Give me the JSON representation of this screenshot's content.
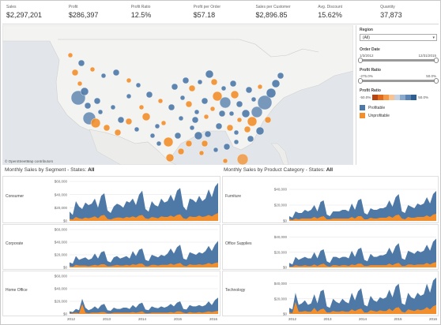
{
  "kpis": [
    {
      "label": "Sales",
      "value": "$2,297,201"
    },
    {
      "label": "Profit",
      "value": "$286,397"
    },
    {
      "label": "Profit Ratio",
      "value": "12.5%"
    },
    {
      "label": "Profit per Order",
      "value": "$57.18"
    },
    {
      "label": "Sales per Customer",
      "value": "$2,896.85"
    },
    {
      "label": "Avg. Discount",
      "value": "15.62%"
    },
    {
      "label": "Quantity",
      "value": "37,873"
    }
  ],
  "map": {
    "credit": "© OpenStreetMap contributors"
  },
  "filters": {
    "region_title": "Region",
    "region_value": "(All)",
    "order_date_title": "Order Date",
    "order_date_start": "1/3/2012",
    "order_date_end": "12/31/2015",
    "profit_ratio_title": "Profit Ratio",
    "profit_ratio_min": "-275.0%",
    "profit_ratio_max": "50.0%",
    "ratio_scale_title": "Profit Ratio",
    "ratio_scale_min": "-50.0%",
    "ratio_scale_max": "50.0%",
    "legend": [
      {
        "label": "Profitable",
        "color": "#4e79a7"
      },
      {
        "label": "Unprofitable",
        "color": "#f28e2b"
      }
    ]
  },
  "segment_section": {
    "title": "Monthly Sales by Segment - States:",
    "state": "All"
  },
  "category_section": {
    "title": "Monthly Sales by Product Category - States:",
    "state": "All"
  },
  "colors": {
    "profitable": "#4e79a7",
    "unprofitable": "#f28e2b"
  },
  "x_ticks": [
    "2012",
    "2013",
    "2014",
    "2015",
    "2016"
  ],
  "segment_ticks": [
    "$60,000",
    "$40,000",
    "$20,000",
    "$0"
  ],
  "category_ticks": [
    "$40,000",
    "$20,000",
    "$0"
  ],
  "chart_data": [
    {
      "type": "area",
      "name": "Consumer",
      "ylim": [
        0,
        60000
      ],
      "series": [
        {
          "name": "Profitable",
          "values": [
            14000,
            9000,
            30000,
            22000,
            18000,
            28000,
            24000,
            26000,
            34000,
            20000,
            38000,
            42000,
            16000,
            12000,
            22000,
            26000,
            24000,
            20000,
            30000,
            28000,
            34000,
            24000,
            40000,
            46000,
            18000,
            14000,
            30000,
            24000,
            22000,
            34000,
            28000,
            30000,
            40000,
            30000,
            46000,
            50000,
            22000,
            16000,
            34000,
            32000,
            28000,
            38000,
            30000,
            34000,
            48000,
            36000,
            52000,
            58000
          ]
        },
        {
          "name": "Unprofitable",
          "values": [
            3000,
            2000,
            6000,
            4000,
            3000,
            5000,
            4000,
            5000,
            7000,
            4000,
            8000,
            9000,
            3000,
            2000,
            4000,
            5000,
            5000,
            4000,
            6000,
            5000,
            7000,
            5000,
            8000,
            9000,
            4000,
            3000,
            6000,
            5000,
            4000,
            7000,
            6000,
            6000,
            8000,
            6000,
            9000,
            10000,
            4000,
            3000,
            7000,
            6000,
            6000,
            8000,
            6000,
            7000,
            9000,
            7000,
            10000,
            12000
          ]
        }
      ]
    },
    {
      "type": "area",
      "name": "Corporate",
      "ylim": [
        0,
        60000
      ],
      "series": [
        {
          "name": "Profitable",
          "values": [
            8000,
            6000,
            18000,
            12000,
            14000,
            16000,
            12000,
            14000,
            22000,
            14000,
            24000,
            26000,
            10000,
            8000,
            16000,
            18000,
            14000,
            16000,
            18000,
            14000,
            26000,
            18000,
            28000,
            30000,
            12000,
            10000,
            20000,
            18000,
            16000,
            20000,
            18000,
            22000,
            30000,
            22000,
            32000,
            36000,
            14000,
            12000,
            24000,
            22000,
            20000,
            24000,
            22000,
            26000,
            34000,
            26000,
            36000,
            42000
          ]
        },
        {
          "name": "Unprofitable",
          "values": [
            2000,
            1000,
            4000,
            3000,
            3000,
            3000,
            2000,
            3000,
            4000,
            3000,
            5000,
            5000,
            2000,
            2000,
            3000,
            4000,
            3000,
            3000,
            4000,
            3000,
            5000,
            4000,
            6000,
            6000,
            2000,
            2000,
            4000,
            4000,
            3000,
            4000,
            4000,
            4000,
            6000,
            4000,
            6000,
            7000,
            3000,
            2000,
            5000,
            4000,
            4000,
            5000,
            4000,
            5000,
            7000,
            5000,
            7000,
            8000
          ]
        }
      ]
    },
    {
      "type": "area",
      "name": "Home Office",
      "ylim": [
        0,
        60000
      ],
      "series": [
        {
          "name": "Profitable",
          "values": [
            4000,
            3000,
            8000,
            6000,
            24000,
            10000,
            6000,
            8000,
            12000,
            8000,
            14000,
            16000,
            6000,
            5000,
            10000,
            8000,
            8000,
            10000,
            10000,
            8000,
            14000,
            10000,
            16000,
            18000,
            7000,
            6000,
            12000,
            10000,
            9000,
            12000,
            10000,
            12000,
            16000,
            12000,
            18000,
            20000,
            8000,
            7000,
            14000,
            12000,
            12000,
            14000,
            12000,
            14000,
            20000,
            14000,
            22000,
            26000
          ]
        },
        {
          "name": "Unprofitable",
          "values": [
            1000,
            1000,
            2000,
            1000,
            16000,
            2000,
            1000,
            2000,
            2000,
            2000,
            3000,
            3000,
            1000,
            1000,
            2000,
            2000,
            2000,
            2000,
            2000,
            2000,
            3000,
            2000,
            3000,
            4000,
            1000,
            1000,
            2000,
            2000,
            2000,
            2000,
            2000,
            2000,
            3000,
            2000,
            4000,
            4000,
            2000,
            1000,
            3000,
            2000,
            2000,
            3000,
            2000,
            3000,
            4000,
            3000,
            4000,
            5000
          ]
        }
      ]
    },
    {
      "type": "area",
      "name": "Furniture",
      "ylim": [
        0,
        50000
      ],
      "series": [
        {
          "name": "Profitable",
          "values": [
            6000,
            4000,
            12000,
            10000,
            10000,
            14000,
            12000,
            14000,
            20000,
            12000,
            24000,
            26000,
            8000,
            6000,
            12000,
            12000,
            12000,
            14000,
            14000,
            12000,
            22000,
            14000,
            26000,
            28000,
            10000,
            8000,
            16000,
            14000,
            14000,
            16000,
            16000,
            18000,
            26000,
            18000,
            30000,
            34000,
            12000,
            10000,
            20000,
            18000,
            16000,
            22000,
            20000,
            22000,
            30000,
            22000,
            34000,
            38000
          ]
        },
        {
          "name": "Unprofitable",
          "values": [
            2000,
            1000,
            3000,
            2000,
            3000,
            3000,
            3000,
            3000,
            5000,
            3000,
            5000,
            6000,
            2000,
            2000,
            3000,
            3000,
            3000,
            3000,
            3000,
            3000,
            5000,
            3000,
            6000,
            6000,
            2000,
            2000,
            4000,
            3000,
            3000,
            4000,
            4000,
            4000,
            6000,
            4000,
            7000,
            8000,
            3000,
            2000,
            5000,
            4000,
            4000,
            5000,
            5000,
            5000,
            7000,
            5000,
            8000,
            9000
          ]
        }
      ]
    },
    {
      "type": "area",
      "name": "Office Supplies",
      "ylim": [
        0,
        50000
      ],
      "series": [
        {
          "name": "Profitable",
          "values": [
            6000,
            4000,
            14000,
            10000,
            12000,
            14000,
            12000,
            12000,
            20000,
            12000,
            22000,
            24000,
            8000,
            6000,
            14000,
            14000,
            12000,
            14000,
            14000,
            12000,
            22000,
            14000,
            24000,
            26000,
            10000,
            8000,
            18000,
            14000,
            14000,
            16000,
            16000,
            18000,
            26000,
            18000,
            28000,
            32000,
            12000,
            10000,
            22000,
            20000,
            18000,
            22000,
            20000,
            22000,
            30000,
            22000,
            34000,
            38000
          ]
        },
        {
          "name": "Unprofitable",
          "values": [
            1000,
            1000,
            3000,
            2000,
            2000,
            3000,
            2000,
            2000,
            4000,
            2000,
            4000,
            5000,
            2000,
            1000,
            3000,
            3000,
            2000,
            3000,
            3000,
            2000,
            4000,
            3000,
            5000,
            5000,
            2000,
            2000,
            3000,
            3000,
            3000,
            3000,
            3000,
            3000,
            5000,
            3000,
            5000,
            6000,
            2000,
            2000,
            4000,
            4000,
            3000,
            4000,
            4000,
            4000,
            6000,
            4000,
            6000,
            7000
          ]
        }
      ]
    },
    {
      "type": "area",
      "name": "Technology",
      "ylim": [
        0,
        50000
      ],
      "series": [
        {
          "name": "Profitable",
          "values": [
            8000,
            6000,
            28000,
            12000,
            14000,
            18000,
            12000,
            14000,
            26000,
            14000,
            30000,
            32000,
            10000,
            8000,
            20000,
            16000,
            14000,
            20000,
            16000,
            14000,
            28000,
            18000,
            30000,
            34000,
            12000,
            10000,
            24000,
            18000,
            16000,
            22000,
            20000,
            22000,
            32000,
            22000,
            36000,
            40000,
            14000,
            12000,
            28000,
            22000,
            20000,
            28000,
            24000,
            26000,
            40000,
            28000,
            44000,
            48000
          ]
        },
        {
          "name": "Unprofitable",
          "values": [
            2000,
            1000,
            16000,
            3000,
            3000,
            4000,
            3000,
            3000,
            8000,
            3000,
            6000,
            7000,
            2000,
            2000,
            4000,
            3000,
            3000,
            4000,
            3000,
            3000,
            6000,
            4000,
            6000,
            7000,
            2000,
            2000,
            5000,
            4000,
            3000,
            5000,
            4000,
            4000,
            7000,
            4000,
            8000,
            9000,
            3000,
            2000,
            6000,
            5000,
            4000,
            6000,
            5000,
            6000,
            9000,
            6000,
            10000,
            12000
          ]
        }
      ]
    }
  ]
}
